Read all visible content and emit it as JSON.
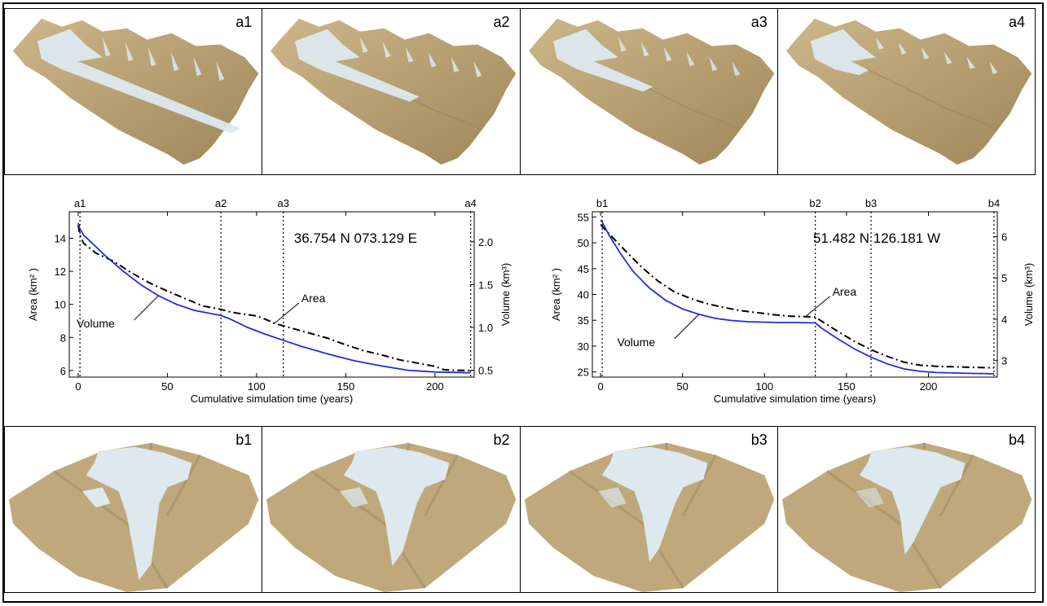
{
  "panels_top": [
    {
      "label": "a1",
      "ice": 1.0
    },
    {
      "label": "a2",
      "ice": 0.62
    },
    {
      "label": "a3",
      "ice": 0.5
    },
    {
      "label": "a4",
      "ice": 0.3
    }
  ],
  "panels_bottom": [
    {
      "label": "b1",
      "ice": 1.0
    },
    {
      "label": "b2",
      "ice": 0.75
    },
    {
      "label": "b3",
      "ice": 0.68
    },
    {
      "label": "b4",
      "ice": 0.55
    }
  ],
  "colors": {
    "terrain": "#bfa97c",
    "terrain_dark": "#9e8658",
    "ice": "#dde9ef",
    "volume_line": "#1f2fd6",
    "area_line": "#000000"
  },
  "chart_data": [
    {
      "type": "line",
      "annotation": "36.754 N  073.129 E",
      "xlabel": "Cumulative simulation time (years)",
      "ylabel_left": "Area (km² )",
      "ylabel_right": "Volume (km³)",
      "xlim": [
        -5,
        222
      ],
      "ylim_left": [
        5.6,
        15.6
      ],
      "ylim_right": [
        0.42,
        2.35
      ],
      "xticks": [
        0,
        50,
        100,
        150,
        200
      ],
      "yticks_left": [
        6,
        8,
        10,
        12,
        14
      ],
      "yticks_right": [
        0.5,
        1.0,
        1.5,
        2.0
      ],
      "ytick_labels_right": [
        "0.5",
        "1.0",
        "1.5",
        "2.0"
      ],
      "markers": [
        {
          "label": "a1",
          "x": 1
        },
        {
          "label": "a2",
          "x": 80
        },
        {
          "label": "a3",
          "x": 115
        },
        {
          "label": "a4",
          "x": 220
        }
      ],
      "series": [
        {
          "name": "Area",
          "axis": "left",
          "style": "dashdot",
          "x": [
            0,
            1,
            3,
            10,
            20,
            30,
            40,
            50,
            60,
            70,
            80,
            85,
            90,
            100,
            105,
            110,
            120,
            130,
            140,
            150,
            160,
            170,
            180,
            190,
            200,
            205,
            210,
            220
          ],
          "y": [
            14.8,
            14.2,
            13.7,
            13.1,
            12.6,
            11.9,
            11.3,
            10.8,
            10.35,
            9.9,
            9.7,
            9.55,
            9.45,
            9.3,
            9.1,
            8.85,
            8.55,
            8.25,
            7.95,
            7.55,
            7.2,
            6.95,
            6.65,
            6.45,
            6.25,
            6.05,
            6.02,
            6.0
          ]
        },
        {
          "name": "Volume",
          "axis": "right",
          "style": "solid",
          "x": [
            0,
            1,
            3,
            8,
            15,
            25,
            35,
            45,
            55,
            65,
            75,
            80,
            85,
            95,
            105,
            115,
            125,
            140,
            155,
            170,
            185,
            200,
            210,
            220
          ],
          "y": [
            2.22,
            2.15,
            2.08,
            1.98,
            1.84,
            1.66,
            1.5,
            1.37,
            1.27,
            1.2,
            1.16,
            1.14,
            1.1,
            1.0,
            0.92,
            0.85,
            0.78,
            0.69,
            0.61,
            0.55,
            0.5,
            0.48,
            0.475,
            0.47
          ]
        }
      ],
      "annotations": [
        {
          "text": "Volume",
          "series": "Volume"
        },
        {
          "text": "Area",
          "series": "Area"
        }
      ]
    },
    {
      "type": "line",
      "annotation": "51.482 N  126.181 W",
      "xlabel": "Cumulative simulation time (years)",
      "ylabel_left": "Area (km² )",
      "ylabel_right": "Volume (km³)",
      "xlim": [
        -5,
        242
      ],
      "ylim_left": [
        24,
        56
      ],
      "ylim_right": [
        2.6,
        6.6
      ],
      "xticks": [
        0,
        50,
        100,
        150,
        200
      ],
      "yticks_left": [
        25,
        30,
        35,
        40,
        45,
        50,
        55
      ],
      "yticks_right": [
        3,
        4,
        5,
        6
      ],
      "ytick_labels_right": [
        "3",
        "4",
        "5",
        "6"
      ],
      "markers": [
        {
          "label": "b1",
          "x": 1
        },
        {
          "label": "b2",
          "x": 131
        },
        {
          "label": "b3",
          "x": 165
        },
        {
          "label": "b4",
          "x": 240
        }
      ],
      "series": [
        {
          "name": "Area",
          "axis": "left",
          "style": "dashdot",
          "x": [
            0,
            1,
            5,
            15,
            25,
            35,
            45,
            55,
            65,
            75,
            85,
            95,
            105,
            115,
            125,
            131,
            135,
            145,
            155,
            165,
            175,
            185,
            195,
            205,
            215,
            225,
            240
          ],
          "y": [
            53.5,
            53.2,
            51.8,
            48.5,
            45.3,
            42.6,
            40.5,
            39.2,
            38.2,
            37.5,
            36.9,
            36.5,
            36.1,
            35.8,
            35.7,
            35.6,
            34.8,
            32.8,
            30.9,
            29.3,
            28.0,
            26.9,
            26.3,
            26.1,
            26.0,
            25.9,
            25.8
          ]
        },
        {
          "name": "Volume",
          "axis": "right",
          "style": "solid",
          "x": [
            0,
            1,
            5,
            12,
            20,
            30,
            40,
            50,
            60,
            70,
            80,
            90,
            100,
            110,
            120,
            131,
            135,
            145,
            155,
            165,
            175,
            185,
            195,
            205,
            215,
            225,
            240
          ],
          "y": [
            6.4,
            6.35,
            6.05,
            5.6,
            5.15,
            4.75,
            4.45,
            4.25,
            4.12,
            4.02,
            3.97,
            3.94,
            3.93,
            3.92,
            3.92,
            3.91,
            3.78,
            3.52,
            3.28,
            3.08,
            2.92,
            2.8,
            2.74,
            2.71,
            2.7,
            2.69,
            2.68
          ]
        }
      ],
      "annotations": [
        {
          "text": "Volume",
          "series": "Volume"
        },
        {
          "text": "Area",
          "series": "Area"
        }
      ]
    }
  ]
}
